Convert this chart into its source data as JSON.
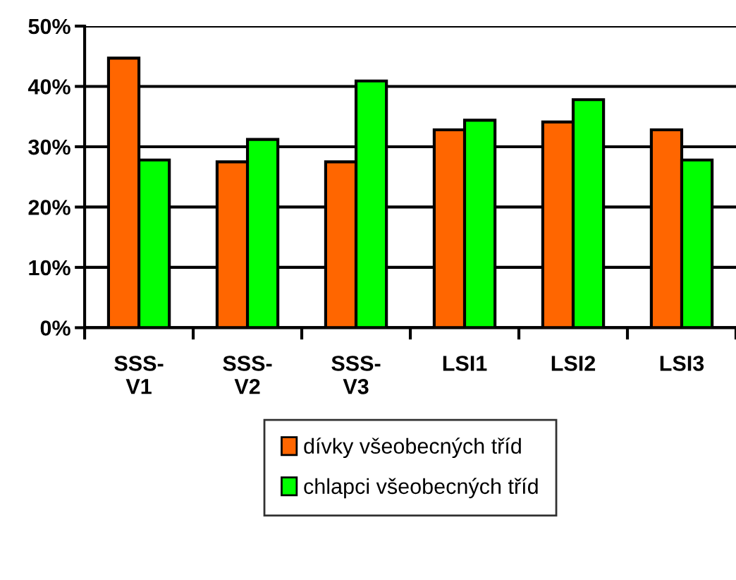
{
  "chart_data": {
    "type": "bar",
    "categories": [
      "SSS-\nV1",
      "SSS-\nV2",
      "SSS-\nV3",
      "LSI1",
      "LSI2",
      "LSI3"
    ],
    "series": [
      {
        "name": "dívky všeobecných tříd",
        "color": "#ff6600",
        "values": [
          44.7,
          27.5,
          27.5,
          32.8,
          34.1,
          32.8
        ]
      },
      {
        "name": "chlapci všeobecných tříd",
        "color": "#00ff00",
        "values": [
          27.8,
          31.2,
          40.9,
          34.4,
          37.8,
          27.8
        ]
      }
    ],
    "ylim": [
      0,
      50
    ],
    "yticks": [
      {
        "value": 0,
        "label": "0%"
      },
      {
        "value": 10,
        "label": "10%"
      },
      {
        "value": 20,
        "label": "20%"
      },
      {
        "value": 30,
        "label": "30%"
      },
      {
        "value": 40,
        "label": "40%"
      },
      {
        "value": 50,
        "label": "50%"
      }
    ],
    "grid": "y",
    "legend": "bottom"
  }
}
